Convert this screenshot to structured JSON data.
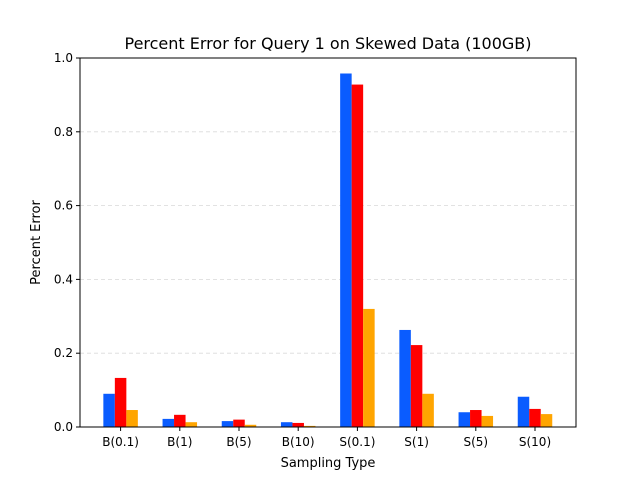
{
  "chart_data": {
    "type": "bar",
    "title": "Percent Error for Query 1 on Skewed Data (100GB)",
    "xlabel": "Sampling Type",
    "ylabel": "Percent Error",
    "categories": [
      "B(0.1)",
      "B(1)",
      "B(5)",
      "B(10)",
      "S(0.1)",
      "S(1)",
      "S(5)",
      "S(10)"
    ],
    "ylim": [
      0,
      1.0
    ],
    "yticks": [
      0.0,
      0.2,
      0.4,
      0.6,
      0.8,
      1.0
    ],
    "ytick_labels": [
      "0.0",
      "0.2",
      "0.4",
      "0.6",
      "0.8",
      "1.0"
    ],
    "grid": "horizontal-dashed",
    "series": [
      {
        "color": "#0a5cff",
        "values": [
          0.09,
          0.022,
          0.016,
          0.013,
          0.958,
          0.263,
          0.04,
          0.082
        ]
      },
      {
        "color": "#ff0000",
        "values": [
          0.133,
          0.033,
          0.02,
          0.011,
          0.928,
          0.222,
          0.046,
          0.049
        ]
      },
      {
        "color": "#ffa500",
        "values": [
          0.046,
          0.013,
          0.006,
          0.003,
          0.32,
          0.09,
          0.03,
          0.035
        ]
      }
    ]
  }
}
